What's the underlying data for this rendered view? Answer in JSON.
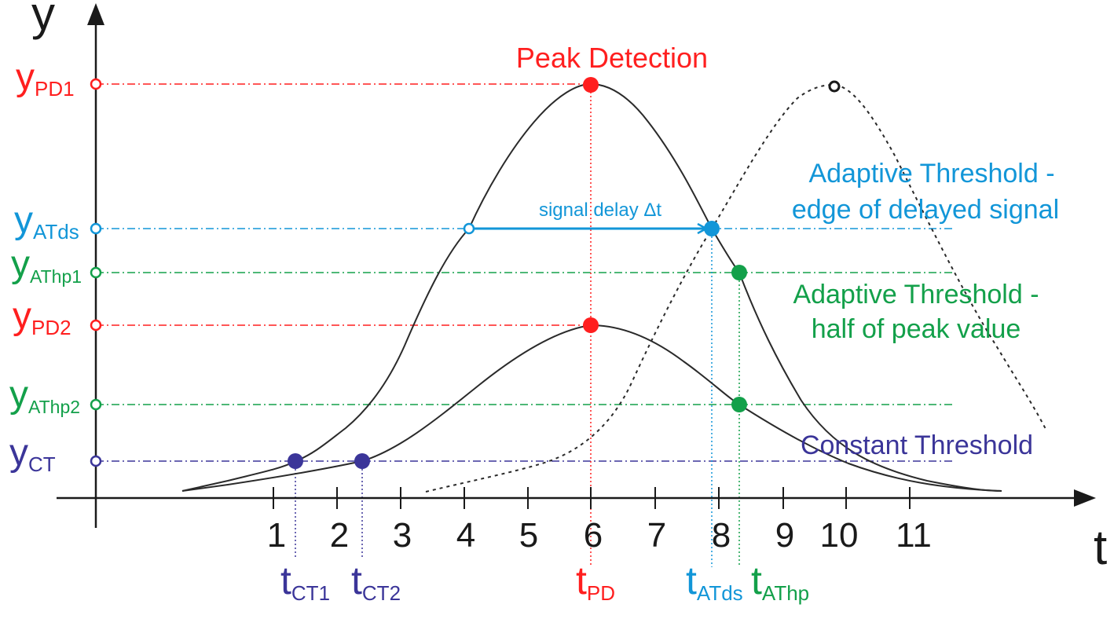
{
  "colors": {
    "red": "#ff1f1f",
    "cyan": "#1296d8",
    "green": "#13a04a",
    "purple": "#3b3599",
    "black": "#1a1a1a",
    "grey": "#555555"
  },
  "axes": {
    "y_label": "y",
    "x_label": "t",
    "x_ticks": [
      "1",
      "2",
      "3",
      "4",
      "5",
      "6",
      "7",
      "8",
      "9",
      "10",
      "11"
    ]
  },
  "y_levels": [
    {
      "main": "y",
      "sub": "PD1"
    },
    {
      "main": "y",
      "sub": "ATds"
    },
    {
      "main": "y",
      "sub": "AThp1"
    },
    {
      "main": "y",
      "sub": "PD2"
    },
    {
      "main": "y",
      "sub": "AThp2"
    },
    {
      "main": "y",
      "sub": "CT"
    }
  ],
  "t_markers": [
    {
      "main": "t",
      "sub": "CT1"
    },
    {
      "main": "t",
      "sub": "CT2"
    },
    {
      "main": "t",
      "sub": "PD"
    },
    {
      "main": "t",
      "sub": "ATds"
    },
    {
      "main": "t",
      "sub": "AThp"
    }
  ],
  "annotations": {
    "peak_detection": "Peak Detection",
    "signal_delay": "signal delay Δt",
    "atds_line1": "Adaptive Threshold -",
    "atds_line2": "edge of delayed signal",
    "athp_line1": "Adaptive Threshold -",
    "athp_line2": "half of peak value",
    "constant_threshold": "Constant Threshold"
  }
}
